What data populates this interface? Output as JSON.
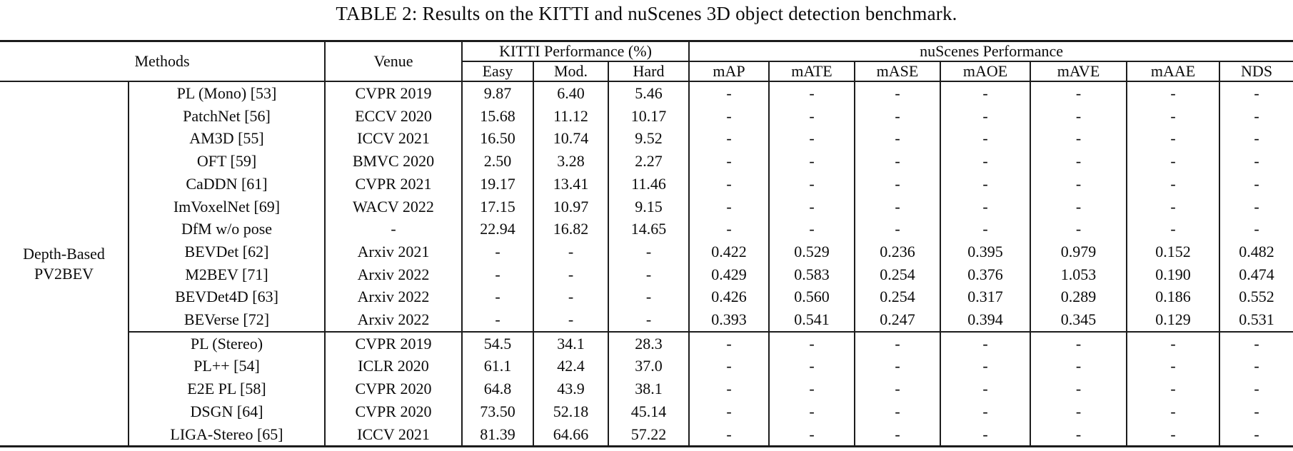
{
  "title": "TABLE 2: Results on the KITTI and nuScenes 3D object detection benchmark.",
  "table": {
    "header": {
      "methods": "Methods",
      "venue": "Venue",
      "kitti_group": "KITTI Performance (%)",
      "nuscenes_group": "nuScenes Performance",
      "kitti_cols": [
        "Easy",
        "Mod.",
        "Hard"
      ],
      "nuscenes_cols": [
        "mAP",
        "mATE",
        "mASE",
        "mAOE",
        "mAVE",
        "mAAE",
        "NDS"
      ]
    },
    "column_keys": [
      "method",
      "venue",
      "easy",
      "mod",
      "hard",
      "map",
      "mate",
      "mase",
      "maoe",
      "mave",
      "maae",
      "nds"
    ],
    "group_label": [
      "Depth-Based",
      "PV2BEV"
    ],
    "rows": [
      {
        "cells": [
          "PL (Mono) [53]",
          "CVPR 2019",
          "9.87",
          "6.40",
          "5.46",
          "-",
          "-",
          "-",
          "-",
          "-",
          "-",
          "-"
        ]
      },
      {
        "cells": [
          "PatchNet [56]",
          "ECCV 2020",
          "15.68",
          "11.12",
          "10.17",
          "-",
          "-",
          "-",
          "-",
          "-",
          "-",
          "-"
        ]
      },
      {
        "cells": [
          "AM3D [55]",
          "ICCV 2021",
          "16.50",
          "10.74",
          "9.52",
          "-",
          "-",
          "-",
          "-",
          "-",
          "-",
          "-"
        ]
      },
      {
        "cells": [
          "OFT [59]",
          "BMVC 2020",
          "2.50",
          "3.28",
          "2.27",
          "-",
          "-",
          "-",
          "-",
          "-",
          "-",
          "-"
        ]
      },
      {
        "cells": [
          "CaDDN [61]",
          "CVPR 2021",
          "19.17",
          "13.41",
          "11.46",
          "-",
          "-",
          "-",
          "-",
          "-",
          "-",
          "-"
        ]
      },
      {
        "cells": [
          "ImVoxelNet [69]",
          "WACV 2022",
          "17.15",
          "10.97",
          "9.15",
          "-",
          "-",
          "-",
          "-",
          "-",
          "-",
          "-"
        ]
      },
      {
        "cells": [
          "DfM w/o pose",
          "-",
          "22.94",
          "16.82",
          "14.65",
          "-",
          "-",
          "-",
          "-",
          "-",
          "-",
          "-"
        ]
      },
      {
        "cells": [
          "BEVDet [62]",
          "Arxiv 2021",
          "-",
          "-",
          "-",
          "0.422",
          "0.529",
          "0.236",
          "0.395",
          "0.979",
          "0.152",
          "0.482"
        ]
      },
      {
        "cells": [
          "M2BEV [71]",
          "Arxiv 2022",
          "-",
          "-",
          "-",
          "0.429",
          "0.583",
          "0.254",
          "0.376",
          "1.053",
          "0.190",
          "0.474"
        ]
      },
      {
        "cells": [
          "BEVDet4D [63]",
          "Arxiv 2022",
          "-",
          "-",
          "-",
          "0.426",
          "0.560",
          "0.254",
          "0.317",
          "0.289",
          "0.186",
          "0.552"
        ]
      },
      {
        "cells": [
          "BEVerse [72]",
          "Arxiv 2022",
          "-",
          "-",
          "-",
          "0.393",
          "0.541",
          "0.247",
          "0.394",
          "0.345",
          "0.129",
          "0.531"
        ]
      },
      {
        "rule_above": true,
        "cells": [
          "PL (Stereo)",
          "CVPR 2019",
          "54.5",
          "34.1",
          "28.3",
          "-",
          "-",
          "-",
          "-",
          "-",
          "-",
          "-"
        ]
      },
      {
        "cells": [
          "PL++ [54]",
          "ICLR 2020",
          "61.1",
          "42.4",
          "37.0",
          "-",
          "-",
          "-",
          "-",
          "-",
          "-",
          "-"
        ]
      },
      {
        "cells": [
          "E2E PL [58]",
          "CVPR 2020",
          "64.8",
          "43.9",
          "38.1",
          "-",
          "-",
          "-",
          "-",
          "-",
          "-",
          "-"
        ]
      },
      {
        "cells": [
          "DSGN [64]",
          "CVPR 2020",
          "73.50",
          "52.18",
          "45.14",
          "-",
          "-",
          "-",
          "-",
          "-",
          "-",
          "-"
        ]
      },
      {
        "cells": [
          "LIGA-Stereo [65]",
          "ICCV 2021",
          "81.39",
          "64.66",
          "57.22",
          "-",
          "-",
          "-",
          "-",
          "-",
          "-",
          "-"
        ]
      }
    ]
  }
}
